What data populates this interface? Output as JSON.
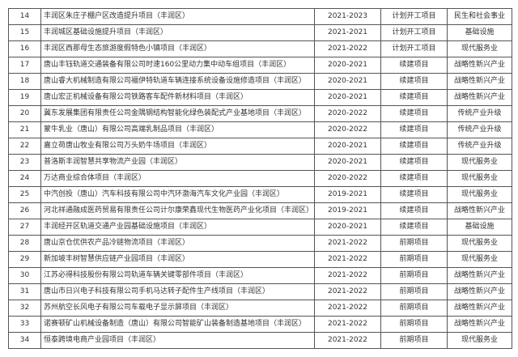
{
  "rows": [
    {
      "no": "14",
      "name": "丰润区朱庄子棚户区改造提升项目（丰润区）",
      "period": "2021-2023",
      "status": "计划开工项目",
      "category": "民生和社会事业"
    },
    {
      "no": "15",
      "name": "丰润城区基础设施提升项目（丰润区）",
      "period": "2021-2021",
      "status": "计划开工项目",
      "category": "基础设施"
    },
    {
      "no": "16",
      "name": "丰润区西那母生态旅游度假特色小镇项目（丰润区）",
      "period": "2021-2022",
      "status": "计划开工项目",
      "category": "现代服务业"
    },
    {
      "no": "17",
      "name": "唐山丰钰轨道交通装备有限公司时速160公里动力集中动车组项目（丰润区）",
      "period": "2020-2021",
      "status": "续建项目",
      "category": "战略性新兴产业"
    },
    {
      "no": "18",
      "name": "唐山睿大机械制造有限公司福伊特轨道车辆连接系统设备设施修造项目（丰润区）",
      "period": "2020-2021",
      "status": "续建项目",
      "category": "战略性新兴产业"
    },
    {
      "no": "19",
      "name": "唐山宏正机械设备有限公司铁路客车配件新材料项目（丰润区）",
      "period": "2020-2021",
      "status": "续建项目",
      "category": "战略性新兴产业"
    },
    {
      "no": "20",
      "name": "冀东发展集团有限责任公司金隅钢结构智能化绿色装配式产业基地项目（丰润区）",
      "period": "2020-2022",
      "status": "续建项目",
      "category": "传统产业升级"
    },
    {
      "no": "21",
      "name": "蒙牛乳业（唐山）有限公司高端乳制品项目（丰润区）",
      "period": "2020-2022",
      "status": "续建项目",
      "category": "传统产业升级"
    },
    {
      "no": "22",
      "name": "嘉立荷唐山牧业有限公司万头奶牛场项目（丰润区）",
      "period": "2020-2021",
      "status": "续建项目",
      "category": "传统产业升级"
    },
    {
      "no": "23",
      "name": "普洛斯丰润智慧共享物流产业园（丰润区）",
      "period": "2020-2021",
      "status": "续建项目",
      "category": "现代服务业"
    },
    {
      "no": "24",
      "name": "万达商业综合体项目（丰润区）",
      "period": "2020-2022",
      "status": "续建项目",
      "category": "现代服务业"
    },
    {
      "no": "25",
      "name": "中汽创投（唐山）汽车科技有限公司中汽环渤海汽车文化产业园（丰润区）",
      "period": "2019-2021",
      "status": "续建项目",
      "category": "现代服务业"
    },
    {
      "no": "26",
      "name": "河北祥通融成医药贸易有限责任公司计尔康荣鑫现代生物医药产业化项目（丰润区）",
      "period": "2019-2021",
      "status": "续建项目",
      "category": "战略性新兴产业"
    },
    {
      "no": "27",
      "name": "丰润经开区轨道交通产业园基础设施项目（丰润区）",
      "period": "2020-2021",
      "status": "续建项目",
      "category": "基础设施"
    },
    {
      "no": "28",
      "name": "唐山京仓优供农产品冷链物流项目（丰润区）",
      "period": "2021-2022",
      "status": "前期项目",
      "category": "现代服务业"
    },
    {
      "no": "29",
      "name": "新加坡丰树智慧供应链产业园项目（丰润区）",
      "period": "2021-2022",
      "status": "前期项目",
      "category": "现代服务业"
    },
    {
      "no": "30",
      "name": "江苏必得科技股份有限公司轨道车辆关键零部件项目（丰润区）",
      "period": "2021-2022",
      "status": "前期项目",
      "category": "战略性新兴产业"
    },
    {
      "no": "31",
      "name": "唐山市日兴电子科技有限公司手机马达转子配件生产线项目（丰润区）",
      "period": "2021-2022",
      "status": "前期项目",
      "category": "战略性新兴产业"
    },
    {
      "no": "32",
      "name": "苏州航空长风电子有限公司车载电子显示屏项目（丰润区）",
      "period": "2021-2022",
      "status": "前期项目",
      "category": "战略性新兴产业"
    },
    {
      "no": "33",
      "name": "诺赛顿矿山机械设备制造（唐山）有限公司智能矿山装备制造基地项目（丰润区）",
      "period": "2021-2022",
      "status": "前期项目",
      "category": "战略性新兴产业"
    },
    {
      "no": "34",
      "name": "恒泰跨境电商产业园项目（丰润区）",
      "period": "2021-2022",
      "status": "前期项目",
      "category": "现代服务业"
    }
  ]
}
